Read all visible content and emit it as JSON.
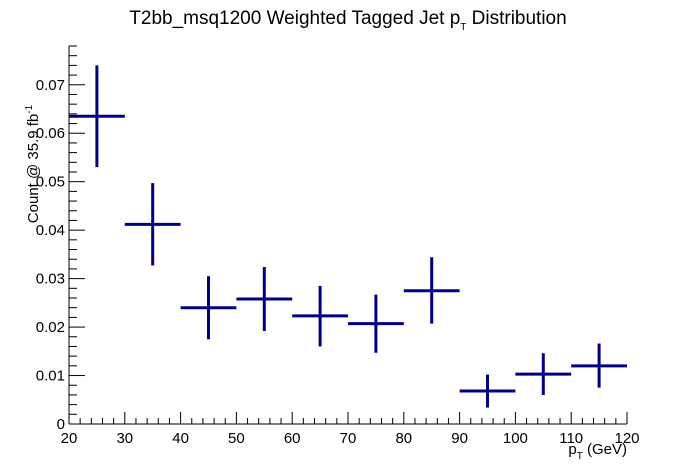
{
  "chart_data": {
    "type": "scatter",
    "title": "T2bb_msq1200 Weighted Tagged Jet p",
    "title_sub": "T",
    "title_tail": " Distribution",
    "xlabel": "p",
    "xlabel_sub": "T",
    "xlabel_tail": " (GeV)",
    "ylabel": "Count @ 35.9 fb",
    "ylabel_sup": "-1",
    "xlim": [
      20,
      120
    ],
    "ylim": [
      0,
      0.078
    ],
    "x_ticks": [
      20,
      30,
      40,
      50,
      60,
      70,
      80,
      90,
      100,
      110,
      120
    ],
    "x_tick_labels": [
      "20",
      "30",
      "40",
      "50",
      "60",
      "70",
      "80",
      "90",
      "100",
      "110",
      "120"
    ],
    "y_ticks": [
      0,
      0.01,
      0.02,
      0.03,
      0.04,
      0.05,
      0.06,
      0.07
    ],
    "y_tick_labels": [
      "0",
      "0.01",
      "0.02",
      "0.03",
      "0.04",
      "0.05",
      "0.06",
      "0.07"
    ],
    "grid": false,
    "marker_color": "#000080",
    "points": [
      {
        "x": 25,
        "xlo": 20,
        "xhi": 30,
        "y": 0.0635,
        "ylo": 0.053,
        "yhi": 0.074
      },
      {
        "x": 35,
        "xlo": 30,
        "xhi": 40,
        "y": 0.0412,
        "ylo": 0.0327,
        "yhi": 0.0497
      },
      {
        "x": 45,
        "xlo": 40,
        "xhi": 50,
        "y": 0.024,
        "ylo": 0.0175,
        "yhi": 0.0305
      },
      {
        "x": 55,
        "xlo": 50,
        "xhi": 60,
        "y": 0.0258,
        "ylo": 0.0192,
        "yhi": 0.0324
      },
      {
        "x": 65,
        "xlo": 60,
        "xhi": 70,
        "y": 0.0223,
        "ylo": 0.016,
        "yhi": 0.0285
      },
      {
        "x": 75,
        "xlo": 70,
        "xhi": 80,
        "y": 0.0207,
        "ylo": 0.0147,
        "yhi": 0.0267
      },
      {
        "x": 85,
        "xlo": 80,
        "xhi": 90,
        "y": 0.0275,
        "ylo": 0.0207,
        "yhi": 0.0344
      },
      {
        "x": 95,
        "xlo": 90,
        "xhi": 100,
        "y": 0.0068,
        "ylo": 0.0034,
        "yhi": 0.0102
      },
      {
        "x": 105,
        "xlo": 100,
        "xhi": 110,
        "y": 0.0103,
        "ylo": 0.006,
        "yhi": 0.0146
      },
      {
        "x": 115,
        "xlo": 110,
        "xhi": 120,
        "y": 0.012,
        "ylo": 0.0075,
        "yhi": 0.0166
      }
    ]
  }
}
